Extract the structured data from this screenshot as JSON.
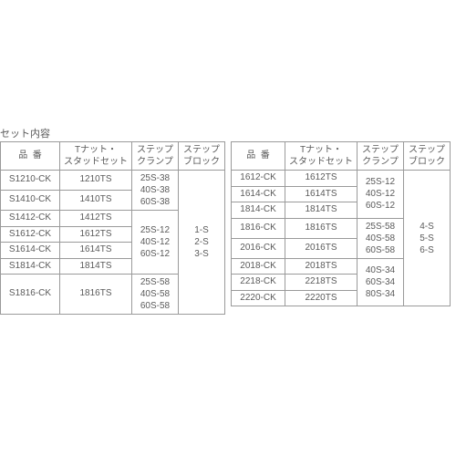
{
  "title": "セット内容",
  "headers": {
    "col1_a": "品",
    "col1_b": "番",
    "col2_a": "Tナット・",
    "col2_b": "スタッドセット",
    "col3_a": "ステップ",
    "col3_b": "クランプ",
    "col4_a": "ステップ",
    "col4_b": "ブロック"
  },
  "colors": {
    "text": "#5a5a5a",
    "border": "#9a9a9a",
    "background": "#ffffff"
  },
  "leftTable": {
    "rows": [
      {
        "pn": "S1210-CK",
        "ts": "1210TS"
      },
      {
        "pn": "S1410-CK",
        "ts": "1410TS"
      },
      {
        "pn": "S1412-CK",
        "ts": "1412TS"
      },
      {
        "pn": "S1612-CK",
        "ts": "1612TS"
      },
      {
        "pn": "S1614-CK",
        "ts": "1614TS"
      },
      {
        "pn": "S1814-CK",
        "ts": "1814TS"
      },
      {
        "pn": "S1816-CK",
        "ts": "1816TS"
      }
    ],
    "clampGroups": [
      {
        "lines": [
          "25S-38",
          "40S-38",
          "60S-38"
        ]
      },
      {
        "lines": [
          "25S-12",
          "40S-12",
          "60S-12"
        ]
      },
      {
        "lines": [
          "25S-58",
          "40S-58",
          "60S-58"
        ]
      }
    ],
    "block": {
      "lines": [
        "1-S",
        "2-S",
        "3-S"
      ]
    }
  },
  "rightTable": {
    "rows": [
      {
        "pn": "1612-CK",
        "ts": "1612TS"
      },
      {
        "pn": "1614-CK",
        "ts": "1614TS"
      },
      {
        "pn": "1814-CK",
        "ts": "1814TS"
      },
      {
        "pn": "1816-CK",
        "ts": "1816TS"
      },
      {
        "pn": "2016-CK",
        "ts": "2016TS"
      },
      {
        "pn": "2018-CK",
        "ts": "2018TS"
      },
      {
        "pn": "2218-CK",
        "ts": "2218TS"
      },
      {
        "pn": "2220-CK",
        "ts": "2220TS"
      }
    ],
    "clampGroups": [
      {
        "lines": [
          "25S-12",
          "40S-12",
          "60S-12"
        ]
      },
      {
        "lines": [
          "25S-58",
          "40S-58",
          "60S-58"
        ]
      },
      {
        "lines": [
          "40S-34",
          "60S-34",
          "80S-34"
        ]
      }
    ],
    "block": {
      "lines": [
        "4-S",
        "5-S",
        "6-S"
      ]
    }
  }
}
